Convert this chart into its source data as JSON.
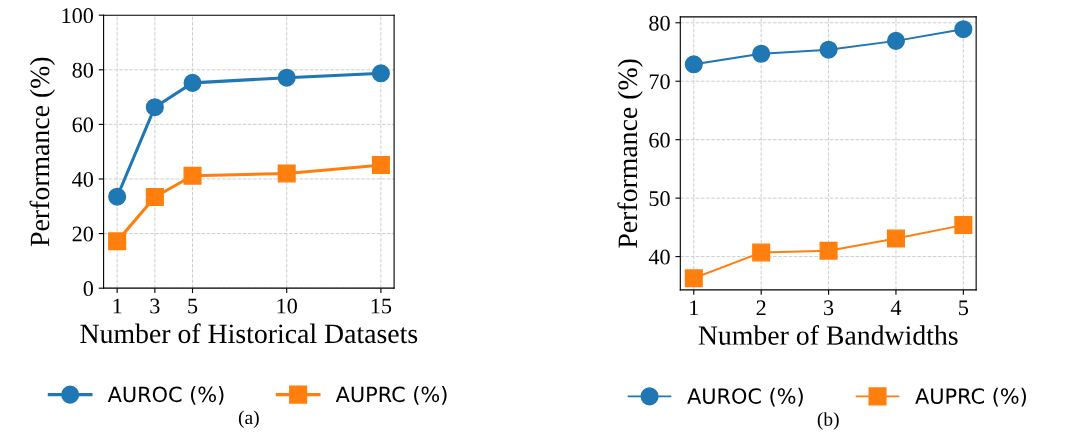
{
  "chart_data": [
    {
      "type": "line",
      "xlabel": "Number of Historical Datasets",
      "ylabel": "Performance (%)",
      "x": [
        1,
        3,
        5,
        10,
        15
      ],
      "xlim": [
        0.28,
        15.7
      ],
      "xticks": [
        1,
        3,
        5,
        10,
        15
      ],
      "ylim": [
        0,
        100
      ],
      "yticks": [
        0,
        20,
        40,
        60,
        80,
        100
      ],
      "grid": true,
      "legend": "bottom",
      "annotations": [
        "(a)"
      ],
      "series": [
        {
          "name": "AUROC (%)",
          "color": "#1f77b4",
          "marker": "circle",
          "values": [
            33.5,
            66.3,
            75.2,
            77.1,
            78.7
          ]
        },
        {
          "name": "AUPRC (%)",
          "color": "#ff7f0e",
          "marker": "square",
          "values": [
            17.2,
            33.4,
            41.2,
            42.0,
            45.1
          ]
        }
      ]
    },
    {
      "type": "line",
      "xlabel": "Number of Bandwidths",
      "ylabel": "Performance (%)",
      "x": [
        1,
        2,
        3,
        4,
        5
      ],
      "xlim": [
        0.8,
        5.19
      ],
      "xticks": [
        1,
        2,
        3,
        4,
        5
      ],
      "ylim": [
        34.3,
        81.0
      ],
      "yticks": [
        40,
        50,
        60,
        70,
        80
      ],
      "grid": true,
      "legend": "bottom",
      "annotations": [
        "(b)"
      ],
      "series": [
        {
          "name": "AUROC (%)",
          "color": "#1f77b4",
          "marker": "circle",
          "values": [
            72.9,
            74.7,
            75.4,
            76.9,
            78.9
          ]
        },
        {
          "name": "AUPRC (%)",
          "color": "#ff7f0e",
          "marker": "square",
          "values": [
            36.3,
            40.7,
            41.0,
            43.1,
            45.4
          ]
        }
      ]
    }
  ]
}
